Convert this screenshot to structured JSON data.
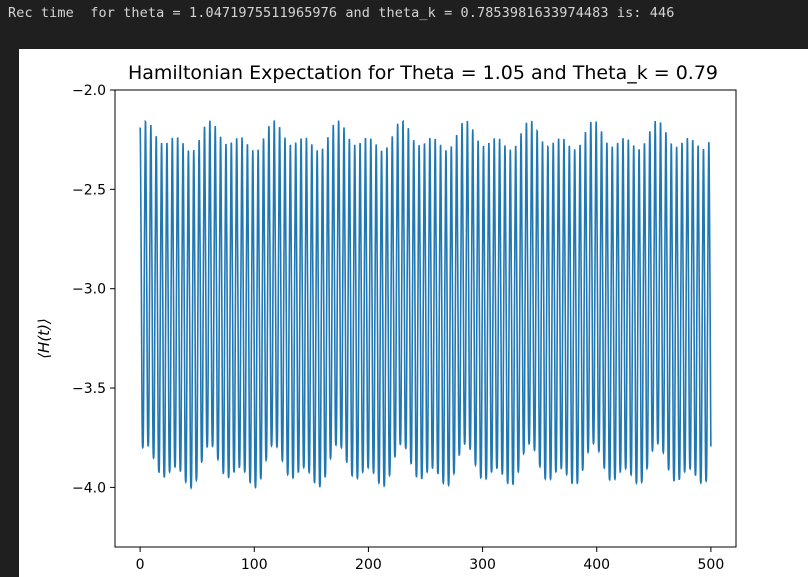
{
  "console": {
    "output_text": "Rec time  for theta = 1.0471975511965976 and theta_k = 0.7853981633974483 is: 446"
  },
  "colors": {
    "background": "#1f1f1f",
    "figure_background": "#ffffff",
    "line": "#1f77b4",
    "console_text": "#d4d4d4"
  },
  "chart_data": {
    "type": "line",
    "title": "Hamiltonian Expectation for Theta = 1.05 and Theta_k = 0.79",
    "xlabel": "",
    "ylabel": "⟨H(t)⟩",
    "xlim": [
      -22,
      522
    ],
    "ylim": [
      -4.3,
      -2.0
    ],
    "x_ticks": [
      0,
      100,
      200,
      300,
      400,
      500
    ],
    "x_tick_labels": [
      "0",
      "100",
      "200",
      "300",
      "400",
      "500"
    ],
    "y_ticks": [
      -2.0,
      -2.5,
      -3.0,
      -3.5,
      -4.0
    ],
    "y_tick_labels": [
      "−2.0",
      "−2.5",
      "−3.0",
      "−3.5",
      "−4.0"
    ],
    "grid": false,
    "series": [
      {
        "t_start": 0,
        "t_end": 500,
        "upper_envelope_approx": [
          -2.15,
          -2.35
        ],
        "lower_envelope_approx": [
          -3.92,
          -4.18
        ],
        "mean_approx": -3.17,
        "oscillation_period_approx": 4.7
      }
    ]
  }
}
